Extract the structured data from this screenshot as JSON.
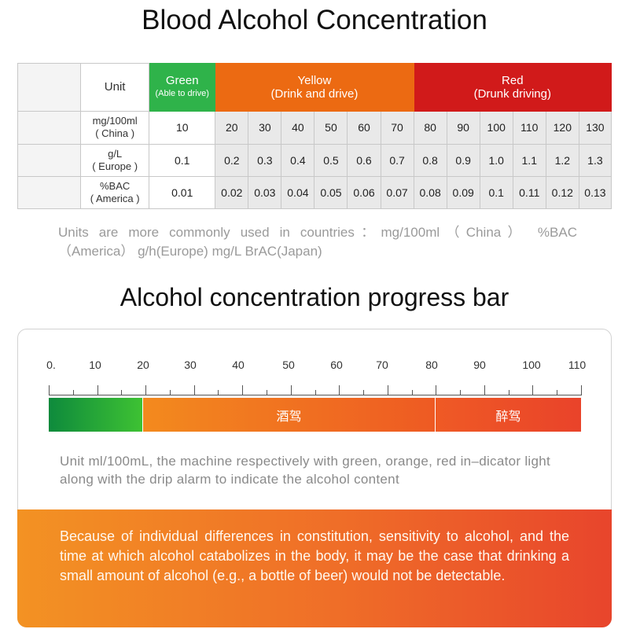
{
  "title": "Blood Alcohol Concentration",
  "table": {
    "unit_header": "Unit",
    "green": {
      "label": "Green",
      "sub": "(Able to drive)",
      "color": "#2fb34a"
    },
    "yellow": {
      "label": "Yellow",
      "sub": "(Drink and drive)",
      "color": "#ec6a12"
    },
    "red": {
      "label": "Red",
      "sub": "(Drunk driving)",
      "color": "#d11a1a"
    },
    "rows": [
      {
        "unit": "mg/100ml",
        "region": "( China )",
        "values": [
          "10",
          "20",
          "30",
          "40",
          "50",
          "60",
          "70",
          "80",
          "90",
          "100",
          "110",
          "120",
          "130"
        ]
      },
      {
        "unit": "g/L",
        "region": "( Europe )",
        "values": [
          "0.1",
          "0.2",
          "0.3",
          "0.4",
          "0.5",
          "0.6",
          "0.7",
          "0.8",
          "0.9",
          "1.0",
          "1.1",
          "1.2",
          "1.3"
        ]
      },
      {
        "unit": "%BAC",
        "region": "( America )",
        "values": [
          "0.01",
          "0.02",
          "0.03",
          "0.04",
          "0.05",
          "0.06",
          "0.07",
          "0.08",
          "0.09",
          "0.1",
          "0.11",
          "0.12",
          "0.13"
        ]
      }
    ]
  },
  "units_note_line1": "Units are more commonly used in countries：mg/100ml（China） %BAC",
  "units_note_line2": "（America） g/h(Europe) mg/L BrAC(Japan)",
  "title2": "Alcohol concentration progress bar",
  "progress": {
    "ticks": [
      "0.",
      "10",
      "20",
      "30",
      "40",
      "50",
      "60",
      "70",
      "80",
      "90",
      "100",
      "110"
    ],
    "segments": [
      {
        "name": "green",
        "label": "",
        "from": 0,
        "to": 20,
        "color": "#2fb34a"
      },
      {
        "name": "orange",
        "label": "酒驾",
        "from": 20,
        "to": 80,
        "color": "#f07a22"
      },
      {
        "name": "red",
        "label": "醉驾",
        "from": 80,
        "to": 110,
        "color": "#e9432a"
      }
    ]
  },
  "progress_note": "Unit ml/100mL, the machine respectively with green, orange, red in–dicator light along with the drip alarm to indicate the alcohol content",
  "warning": "Because of individual differences in constitution, sensitivity to alcohol, and the time at which alcohol catabolizes in the body, it may be the case that drinking a small amount of alcohol (e.g., a bottle of beer) would not be detectable."
}
